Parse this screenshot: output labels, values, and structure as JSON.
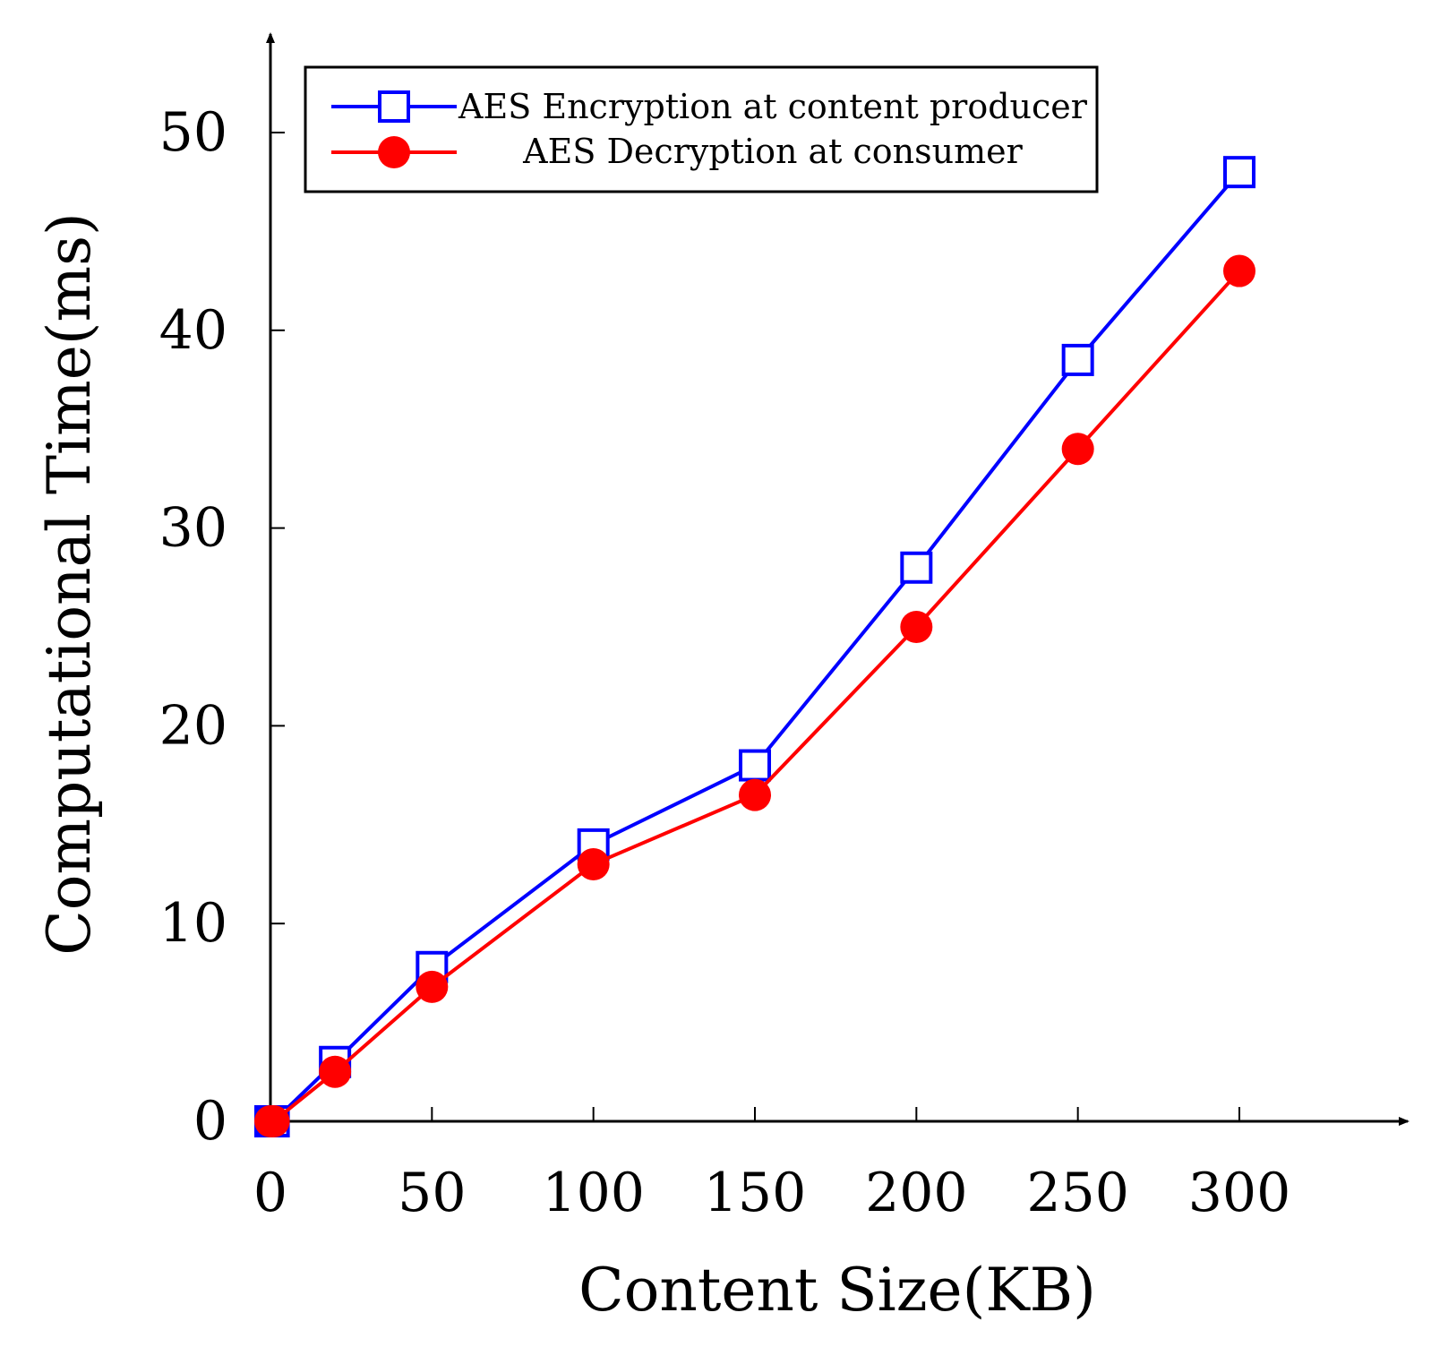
{
  "chart_data": {
    "type": "line",
    "title": "",
    "xlabel": "Content Size(KB)",
    "ylabel": "Computational Time(ms)",
    "xlim": [
      0,
      340
    ],
    "ylim": [
      0,
      55
    ],
    "x_ticks": [
      0,
      50,
      100,
      150,
      200,
      250,
      300
    ],
    "y_ticks": [
      0,
      10,
      20,
      30,
      40,
      50
    ],
    "grid": false,
    "legend_position": "top",
    "series": [
      {
        "name": "AES Encryption at content producer",
        "color": "#0000ff",
        "marker": "open-square",
        "x": [
          0,
          1,
          20,
          50,
          100,
          150,
          200,
          250,
          300
        ],
        "y": [
          0,
          0,
          3,
          7.8,
          14,
          18,
          28,
          38.5,
          48
        ]
      },
      {
        "name": "AES Decryption at consumer",
        "color": "#ff0000",
        "marker": "filled-circle",
        "x": [
          0,
          1,
          20,
          50,
          100,
          150,
          200,
          250,
          300
        ],
        "y": [
          0,
          0,
          2.5,
          6.8,
          13,
          16.5,
          25,
          34,
          43
        ]
      }
    ]
  }
}
